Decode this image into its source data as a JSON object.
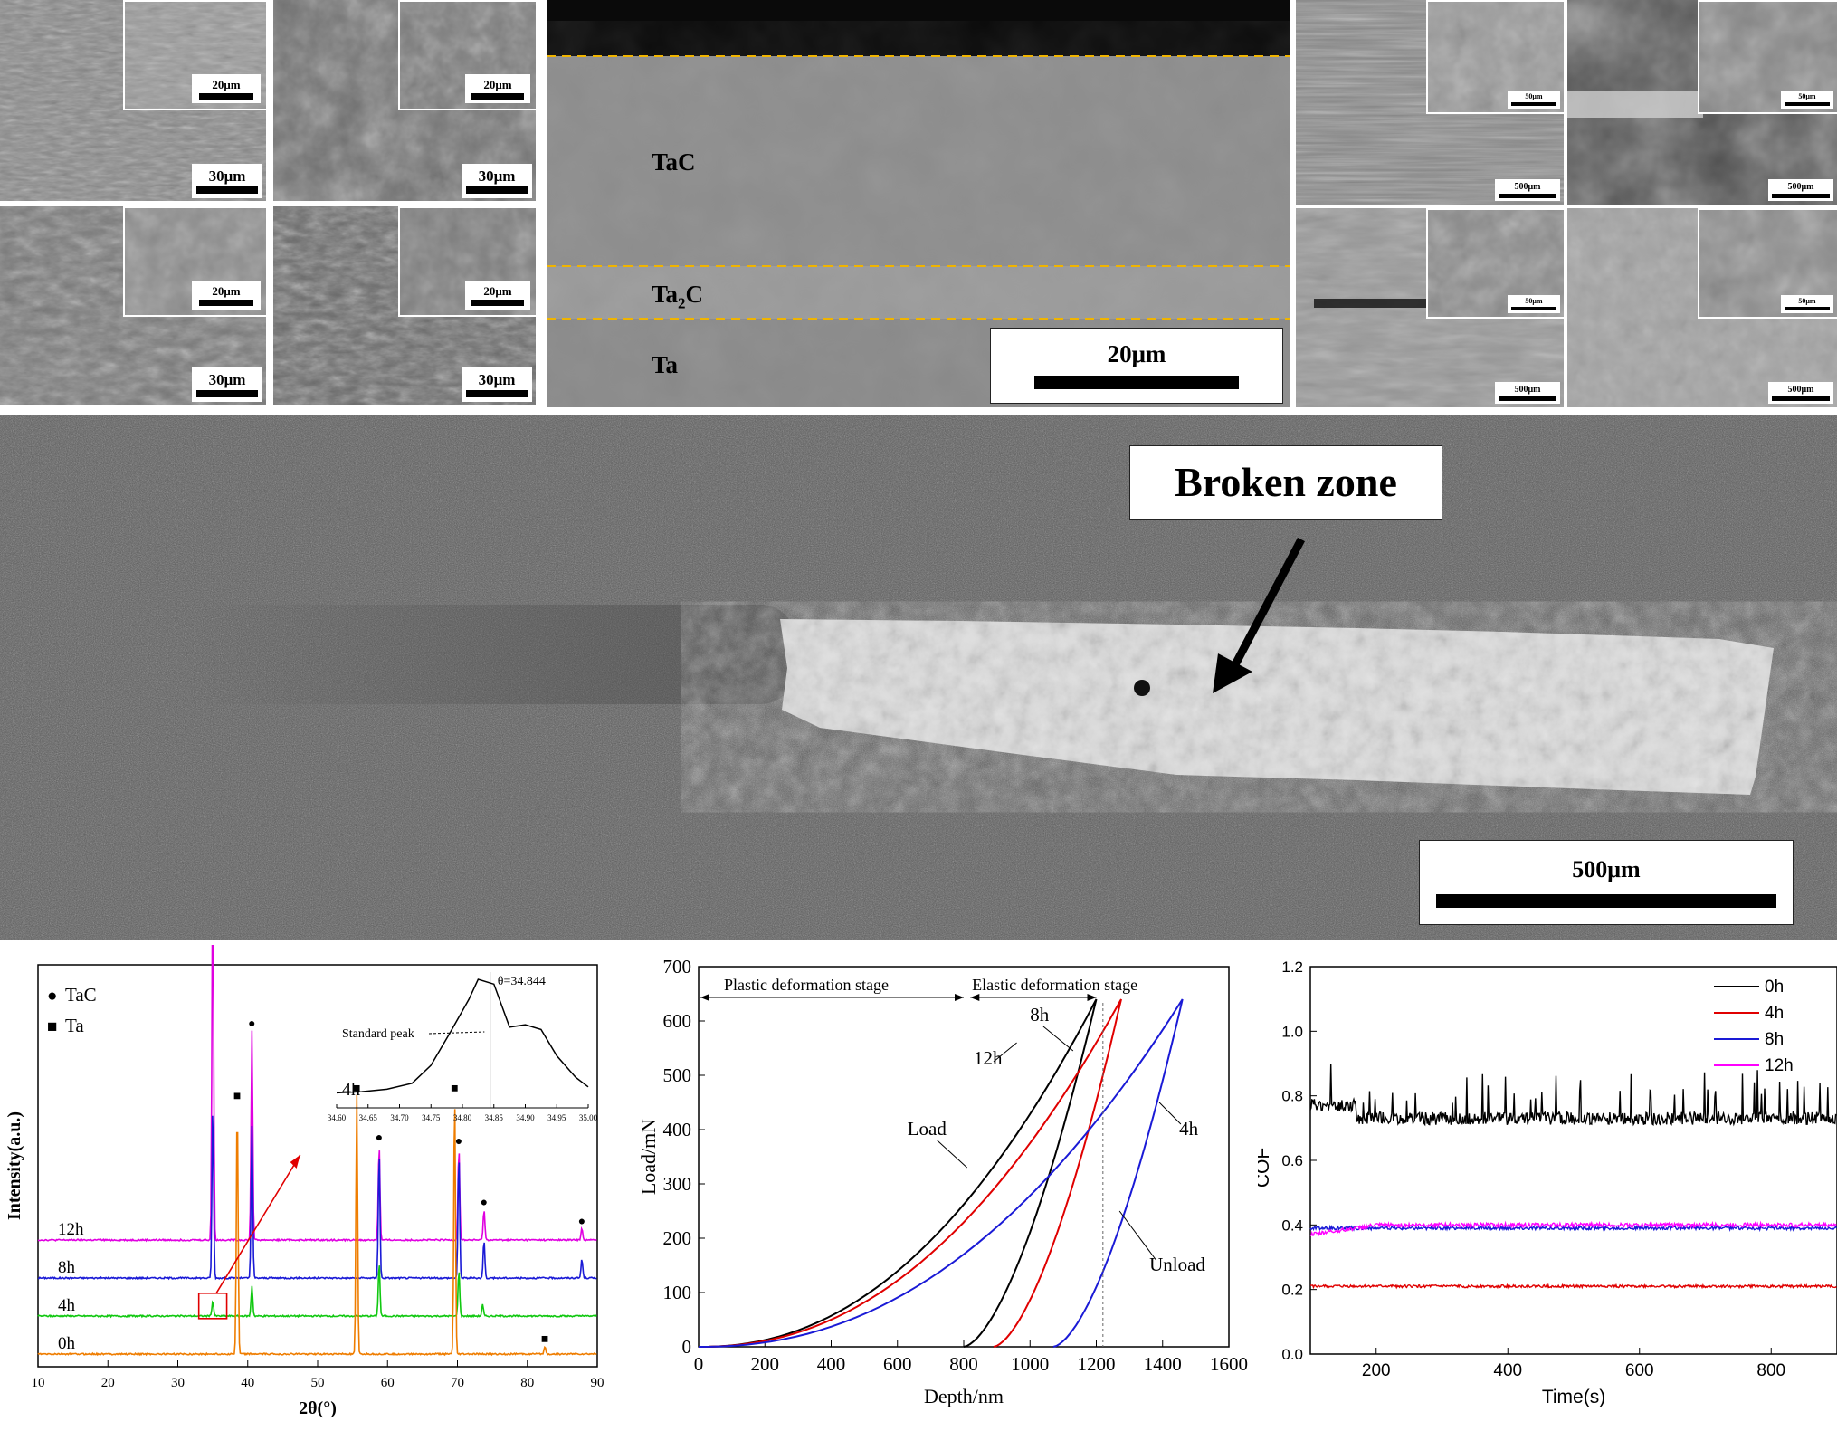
{
  "top_left_panels": [
    {
      "scale_main": "30μm",
      "scale_inset": "20μm",
      "bg": "#8a8a8a",
      "inset_bg": "#9a9a9a"
    },
    {
      "scale_main": "30μm",
      "scale_inset": "20μm",
      "bg": "#6e6e6e",
      "inset_bg": "#7a7a7a"
    },
    {
      "scale_main": "30μm",
      "scale_inset": "20μm",
      "bg": "#787878",
      "inset_bg": "#8c8c8c"
    },
    {
      "scale_main": "30μm",
      "scale_inset": "20μm",
      "bg": "#6a6a6a",
      "inset_bg": "#7c7c7c"
    }
  ],
  "cross_section": {
    "layers": [
      "TaC",
      "Ta2C",
      "Ta"
    ],
    "layer_taC": "TaC",
    "layer_ta2c_main": "Ta",
    "layer_ta2c_sub": "2",
    "layer_ta2c_tail": "C",
    "layer_ta": "Ta",
    "scale": "20μm",
    "boundary_color": "#f0b400"
  },
  "top_right_panels": [
    {
      "scale_main": "500μm",
      "scale_inset": "50μm"
    },
    {
      "scale_main": "500μm",
      "scale_inset": "50μm"
    },
    {
      "scale_main": "500μm",
      "scale_inset": "50μm"
    },
    {
      "scale_main": "500μm",
      "scale_inset": "50μm"
    }
  ],
  "scratch": {
    "label": "Broken zone",
    "scale": "500μm"
  },
  "chart_data": [
    {
      "type": "line",
      "xlabel": "2θ(°)",
      "ylabel": "Intensity(a.u.)",
      "xlim": [
        10,
        90
      ],
      "xticks": [
        "10",
        "20",
        "30",
        "40",
        "50",
        "60",
        "70",
        "80",
        "90"
      ],
      "legend": [
        {
          "symbol": "●",
          "name": "TaC"
        },
        {
          "symbol": "■",
          "name": "Ta"
        }
      ],
      "series": [
        {
          "name": "12h",
          "color": "#e000e0",
          "offset": 0.3,
          "peaks": [
            [
              35.0,
              1.0
            ],
            [
              40.6,
              0.55
            ],
            [
              58.8,
              0.25
            ],
            [
              70.2,
              0.24
            ],
            [
              73.8,
              0.08
            ],
            [
              87.8,
              0.03
            ]
          ]
        },
        {
          "name": "8h",
          "color": "#1a1ad6",
          "offset": 0.2,
          "peaks": [
            [
              35.0,
              0.45
            ],
            [
              40.6,
              0.4
            ],
            [
              58.8,
              0.33
            ],
            [
              70.2,
              0.32
            ],
            [
              73.8,
              0.1
            ],
            [
              87.8,
              0.05
            ]
          ]
        },
        {
          "name": "4h",
          "color": "#10c810",
          "offset": 0.1,
          "peaks": [
            [
              35.0,
              0.04
            ],
            [
              40.6,
              0.08
            ],
            [
              58.8,
              0.14
            ],
            [
              70.2,
              0.12
            ],
            [
              73.6,
              0.03
            ]
          ]
        },
        {
          "name": "0h",
          "color": "#ef7d00",
          "offset": 0.0,
          "peaks": [
            [
              38.5,
              0.66
            ],
            [
              55.6,
              0.68
            ],
            [
              69.6,
              0.68
            ],
            [
              82.5,
              0.02
            ]
          ]
        }
      ],
      "marker_circle_label": "●",
      "marker_square_label": "■",
      "inset": {
        "xticks": [
          "34.60",
          "34.65",
          "34.70",
          "34.75",
          "34.80",
          "34.85",
          "34.90",
          "34.95",
          "35.00"
        ],
        "annotation": "θ=34.844",
        "standard_label": "Standard peak",
        "series_label": "4h"
      }
    },
    {
      "type": "line",
      "xlabel": "Depth/nm",
      "ylabel": "Load/mN",
      "xlim": [
        0,
        1600
      ],
      "ylim": [
        0,
        700
      ],
      "xticks": [
        "0",
        "200",
        "400",
        "600",
        "800",
        "1000",
        "1200",
        "1400",
        "1600"
      ],
      "yticks": [
        "0",
        "100",
        "200",
        "300",
        "400",
        "500",
        "600",
        "700"
      ],
      "stage_plastic": "Plastic deformation stage",
      "stage_elastic": "Elastic deformation stage",
      "labels": {
        "h12": "12h",
        "h8": "8h",
        "h4": "4h",
        "load": "Load",
        "unload": "Unload"
      },
      "series": [
        {
          "name": "12h",
          "color": "#000000",
          "max_depth": 1200,
          "final_depth": 800
        },
        {
          "name": "8h",
          "color": "#e00000",
          "max_depth": 1275,
          "final_depth": 890
        },
        {
          "name": "4h",
          "color": "#1a1ad6",
          "max_depth": 1460,
          "final_depth": 1070
        }
      ],
      "peak_load": 640,
      "dashed_x": 1220
    },
    {
      "type": "line",
      "xlabel": "Time(s)",
      "ylabel": "COF",
      "xlim": [
        100,
        900
      ],
      "ylim": [
        0,
        1.2
      ],
      "xticks": [
        "200",
        "400",
        "600",
        "800"
      ],
      "yticks": [
        "0.0",
        "0.2",
        "0.4",
        "0.6",
        "0.8",
        "1.0",
        "1.2"
      ],
      "series": [
        {
          "name": "0h",
          "color": "#000000",
          "mean": 0.73,
          "noise": 0.02
        },
        {
          "name": "4h",
          "color": "#e00000",
          "mean": 0.21,
          "noise": 0.004
        },
        {
          "name": "8h",
          "color": "#1a1ad6",
          "mean": 0.39,
          "noise": 0.005
        },
        {
          "name": "12h",
          "color": "#ff00ff",
          "mean": 0.4,
          "noise": 0.006
        }
      ]
    }
  ]
}
